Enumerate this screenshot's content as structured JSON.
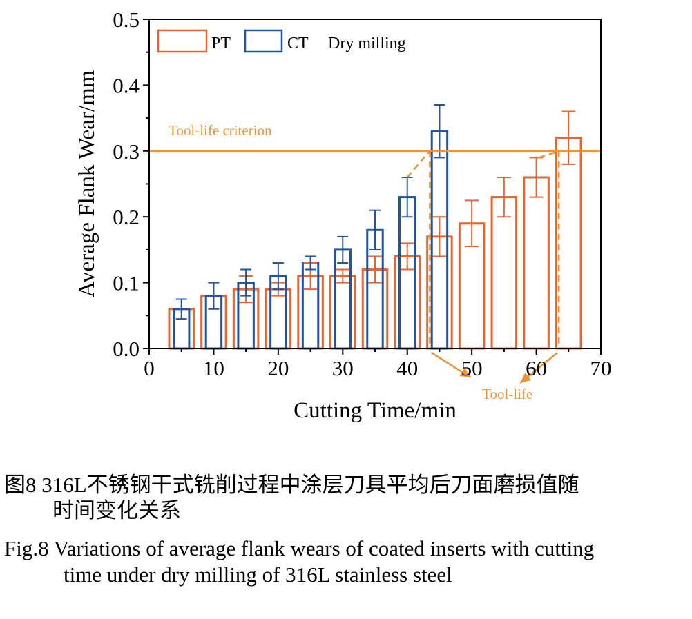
{
  "chart_data": {
    "type": "bar",
    "xlabel": "Cutting Time/min",
    "ylabel": "Average Flank Wear/mm",
    "xlim": [
      0,
      70
    ],
    "ylim": [
      0,
      0.5
    ],
    "x_ticks": [
      "0",
      "10",
      "20",
      "30",
      "40",
      "50",
      "60",
      "70"
    ],
    "y_ticks": [
      "0.0",
      "0.1",
      "0.2",
      "0.3",
      "0.4",
      "0.5"
    ],
    "legend_position": "top-left",
    "legend_title": "Dry milling",
    "grid": false,
    "series": [
      {
        "name": "PT",
        "color": "#e8662e",
        "x": [
          5,
          10,
          15,
          20,
          25,
          30,
          35,
          40,
          45,
          50,
          55,
          60,
          65
        ],
        "values": [
          0.06,
          0.08,
          0.09,
          0.09,
          0.11,
          0.11,
          0.12,
          0.14,
          0.17,
          0.19,
          0.23,
          0.26,
          0.32
        ],
        "error": [
          0.0,
          0.0,
          0.02,
          0.01,
          0.02,
          0.01,
          0.02,
          0.02,
          0.03,
          0.035,
          0.03,
          0.03,
          0.04
        ]
      },
      {
        "name": "CT",
        "color": "#2255a0",
        "x": [
          5,
          10,
          15,
          20,
          25,
          30,
          35,
          40,
          45
        ],
        "values": [
          0.06,
          0.08,
          0.1,
          0.11,
          0.13,
          0.15,
          0.18,
          0.23,
          0.33
        ],
        "error": [
          0.015,
          0.02,
          0.02,
          0.02,
          0.01,
          0.02,
          0.03,
          0.03,
          0.04
        ]
      }
    ],
    "criterion": {
      "value": 0.3,
      "label": "Tool-life criterion",
      "color": "#f0922e"
    },
    "tool_life": {
      "label": "Tool-life",
      "values": [
        43.5,
        63.5
      ]
    }
  },
  "caption": {
    "cn_line1": "图8  316L不锈钢干式铣削过程中涂层刀具平均后刀面磨损值随",
    "cn_line2": "时间变化关系",
    "en_line1": "Fig.8  Variations of average flank wears of coated inserts with cutting",
    "en_line2": "time under dry milling of 316L stainless steel"
  }
}
